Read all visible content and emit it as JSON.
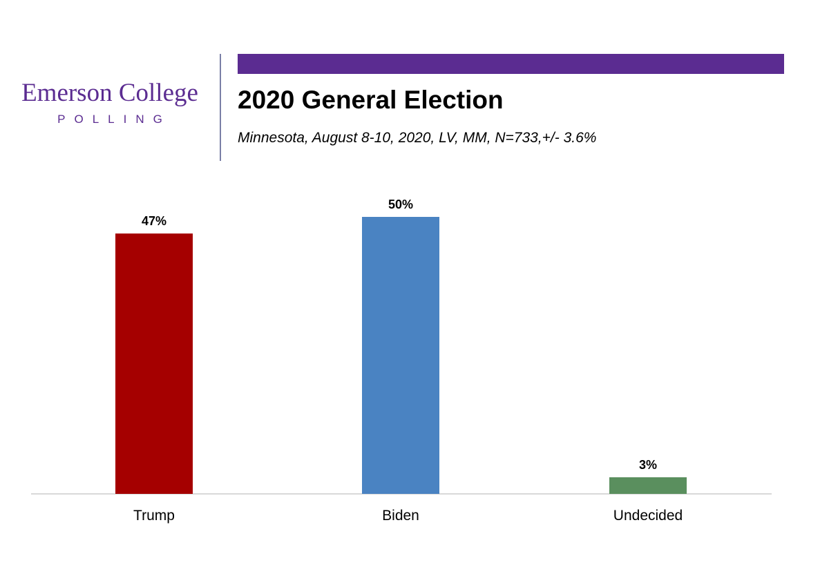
{
  "logo": {
    "name": "Emerson College",
    "sub": "POLLING"
  },
  "header": {
    "title": "2020 General Election",
    "subtitle": "Minnesota, August 8-10, 2020, LV, MM,  N=733,+/-  3.6%"
  },
  "colors": {
    "brand": "#5b2c91",
    "trump": "#a50000",
    "biden": "#4a83c2",
    "undecided": "#5a8f5e",
    "axis": "#d9d9d9"
  },
  "chart_data": {
    "type": "bar",
    "title": "2020 General Election",
    "xlabel": "",
    "ylabel": "",
    "ylim": [
      0,
      50
    ],
    "grid": false,
    "categories": [
      "Trump",
      "Biden",
      "Undecided"
    ],
    "values": [
      47,
      50,
      3
    ],
    "labels": [
      "47%",
      "50%",
      "3%"
    ],
    "colors": [
      "#a50000",
      "#4a83c2",
      "#5a8f5e"
    ]
  }
}
